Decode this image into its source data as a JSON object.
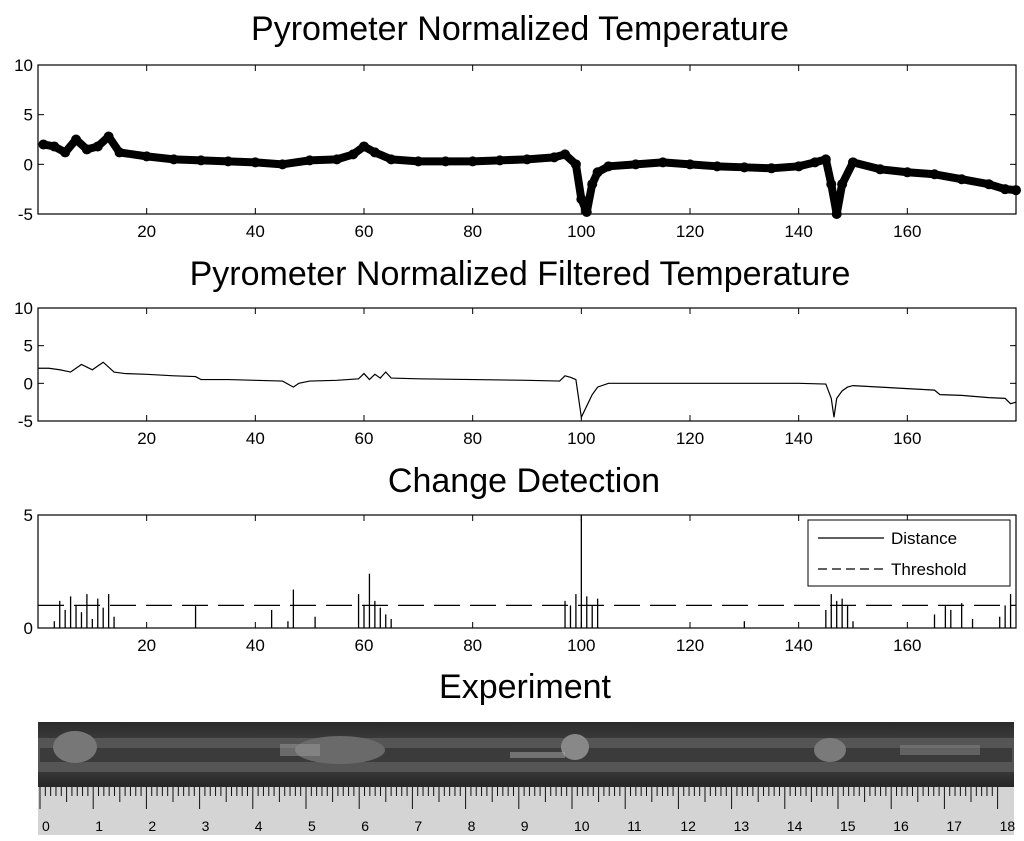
{
  "chart_data": [
    {
      "type": "scatter",
      "title": "Pyrometer Normalized Temperature",
      "xlabel": "",
      "ylabel": "",
      "xlim": [
        0,
        180
      ],
      "ylim": [
        -5,
        10
      ],
      "xticks": [
        20,
        40,
        60,
        80,
        100,
        120,
        140,
        160
      ],
      "yticks": [
        10,
        5,
        0,
        -5
      ],
      "x": [
        1,
        3,
        5,
        7,
        9,
        11,
        13,
        15,
        20,
        25,
        30,
        35,
        40,
        45,
        50,
        55,
        58,
        60,
        62,
        65,
        70,
        75,
        80,
        85,
        90,
        95,
        97,
        99,
        100,
        101,
        102,
        103,
        105,
        110,
        115,
        120,
        125,
        130,
        135,
        140,
        143,
        145,
        146,
        147,
        148,
        150,
        155,
        160,
        165,
        170,
        175,
        178,
        180
      ],
      "y": [
        2,
        1.8,
        1.2,
        2.5,
        1.5,
        1.8,
        2.8,
        1.2,
        0.8,
        0.5,
        0.4,
        0.3,
        0.2,
        0,
        0.4,
        0.5,
        1,
        1.8,
        1.2,
        0.5,
        0.3,
        0.3,
        0.3,
        0.4,
        0.5,
        0.7,
        1,
        0,
        -3.5,
        -4.8,
        -2,
        -0.8,
        -0.2,
        0,
        0.2,
        0,
        -0.2,
        -0.3,
        -0.4,
        -0.2,
        0.2,
        0.5,
        -2,
        -5,
        -2,
        0.2,
        -0.5,
        -0.8,
        -1,
        -1.5,
        -2,
        -2.5,
        -2.6
      ]
    },
    {
      "type": "line",
      "title": "Pyrometer Normalized Filtered Temperature",
      "xlabel": "",
      "ylabel": "",
      "xlim": [
        0,
        180
      ],
      "ylim": [
        -5,
        10
      ],
      "xticks": [
        20,
        40,
        60,
        80,
        100,
        120,
        140,
        160
      ],
      "yticks": [
        10,
        5,
        0,
        -5
      ],
      "x": [
        0,
        2,
        4,
        6,
        8,
        10,
        12,
        14,
        16,
        20,
        25,
        29,
        30,
        35,
        40,
        45,
        47,
        48,
        50,
        55,
        59,
        60,
        61,
        62,
        63,
        64,
        65,
        70,
        80,
        90,
        96,
        97,
        98,
        99,
        100,
        101,
        102,
        103,
        105,
        110,
        120,
        130,
        140,
        145,
        146,
        146.5,
        147,
        148,
        149,
        150,
        155,
        160,
        165,
        166,
        170,
        175,
        178,
        179,
        180
      ],
      "y": [
        2,
        2,
        1.8,
        1.5,
        2.5,
        1.8,
        2.8,
        1.5,
        1.3,
        1.2,
        1,
        0.9,
        0.5,
        0.5,
        0.4,
        0.3,
        -0.5,
        0,
        0.3,
        0.4,
        0.6,
        1.3,
        0.5,
        1.2,
        0.7,
        1.5,
        0.7,
        0.6,
        0.5,
        0.4,
        0.3,
        1,
        0.8,
        0.5,
        -4.5,
        -3,
        -1.5,
        -0.5,
        0,
        0,
        0,
        0,
        0,
        -0.1,
        -2,
        -4.5,
        -2,
        -1,
        -0.5,
        -0.3,
        -0.5,
        -0.7,
        -0.9,
        -1.5,
        -1.6,
        -1.9,
        -2,
        -2.7,
        -2.5
      ]
    },
    {
      "type": "bar",
      "title": "Change Detection",
      "xlabel": "",
      "ylabel": "",
      "xlim": [
        0,
        180
      ],
      "ylim": [
        0,
        5
      ],
      "xticks": [
        20,
        40,
        60,
        80,
        100,
        120,
        140,
        160
      ],
      "yticks": [
        5,
        0
      ],
      "legend_position": "top-right",
      "threshold": 1,
      "series": [
        {
          "name": "Distance",
          "x": [
            3,
            4,
            5,
            6,
            7,
            8,
            9,
            10,
            11,
            12,
            13,
            14,
            29,
            43,
            46,
            47,
            51,
            59,
            60,
            61,
            62,
            63,
            64,
            65,
            97,
            98,
            99,
            100,
            101,
            102,
            103,
            130,
            145,
            146,
            147,
            148,
            149,
            150,
            165,
            167,
            168,
            170,
            172,
            177,
            178,
            179
          ],
          "values": [
            0.3,
            1.2,
            0.8,
            1.4,
            1.0,
            0.7,
            1.5,
            0.4,
            1.3,
            0.9,
            1.5,
            0.5,
            1.0,
            0.8,
            0.3,
            1.7,
            0.5,
            1.5,
            1.0,
            2.4,
            1.2,
            0.9,
            0.6,
            0.4,
            1.2,
            1.0,
            1.5,
            5.0,
            1.4,
            1.0,
            1.3,
            0.3,
            0.8,
            1.5,
            1.2,
            1.3,
            1.0,
            0.3,
            0.6,
            1.0,
            0.8,
            1.1,
            0.4,
            0.5,
            1.0,
            1.5
          ]
        },
        {
          "name": "Threshold",
          "x": [
            0,
            180
          ],
          "values": [
            1,
            1
          ]
        }
      ]
    }
  ],
  "experiment": {
    "title": "Experiment",
    "ruler_labels": [
      "0",
      "1",
      "2",
      "3",
      "4",
      "5",
      "6",
      "7",
      "8",
      "9",
      "10",
      "11",
      "12",
      "13",
      "14",
      "15",
      "16",
      "17",
      "18"
    ]
  }
}
